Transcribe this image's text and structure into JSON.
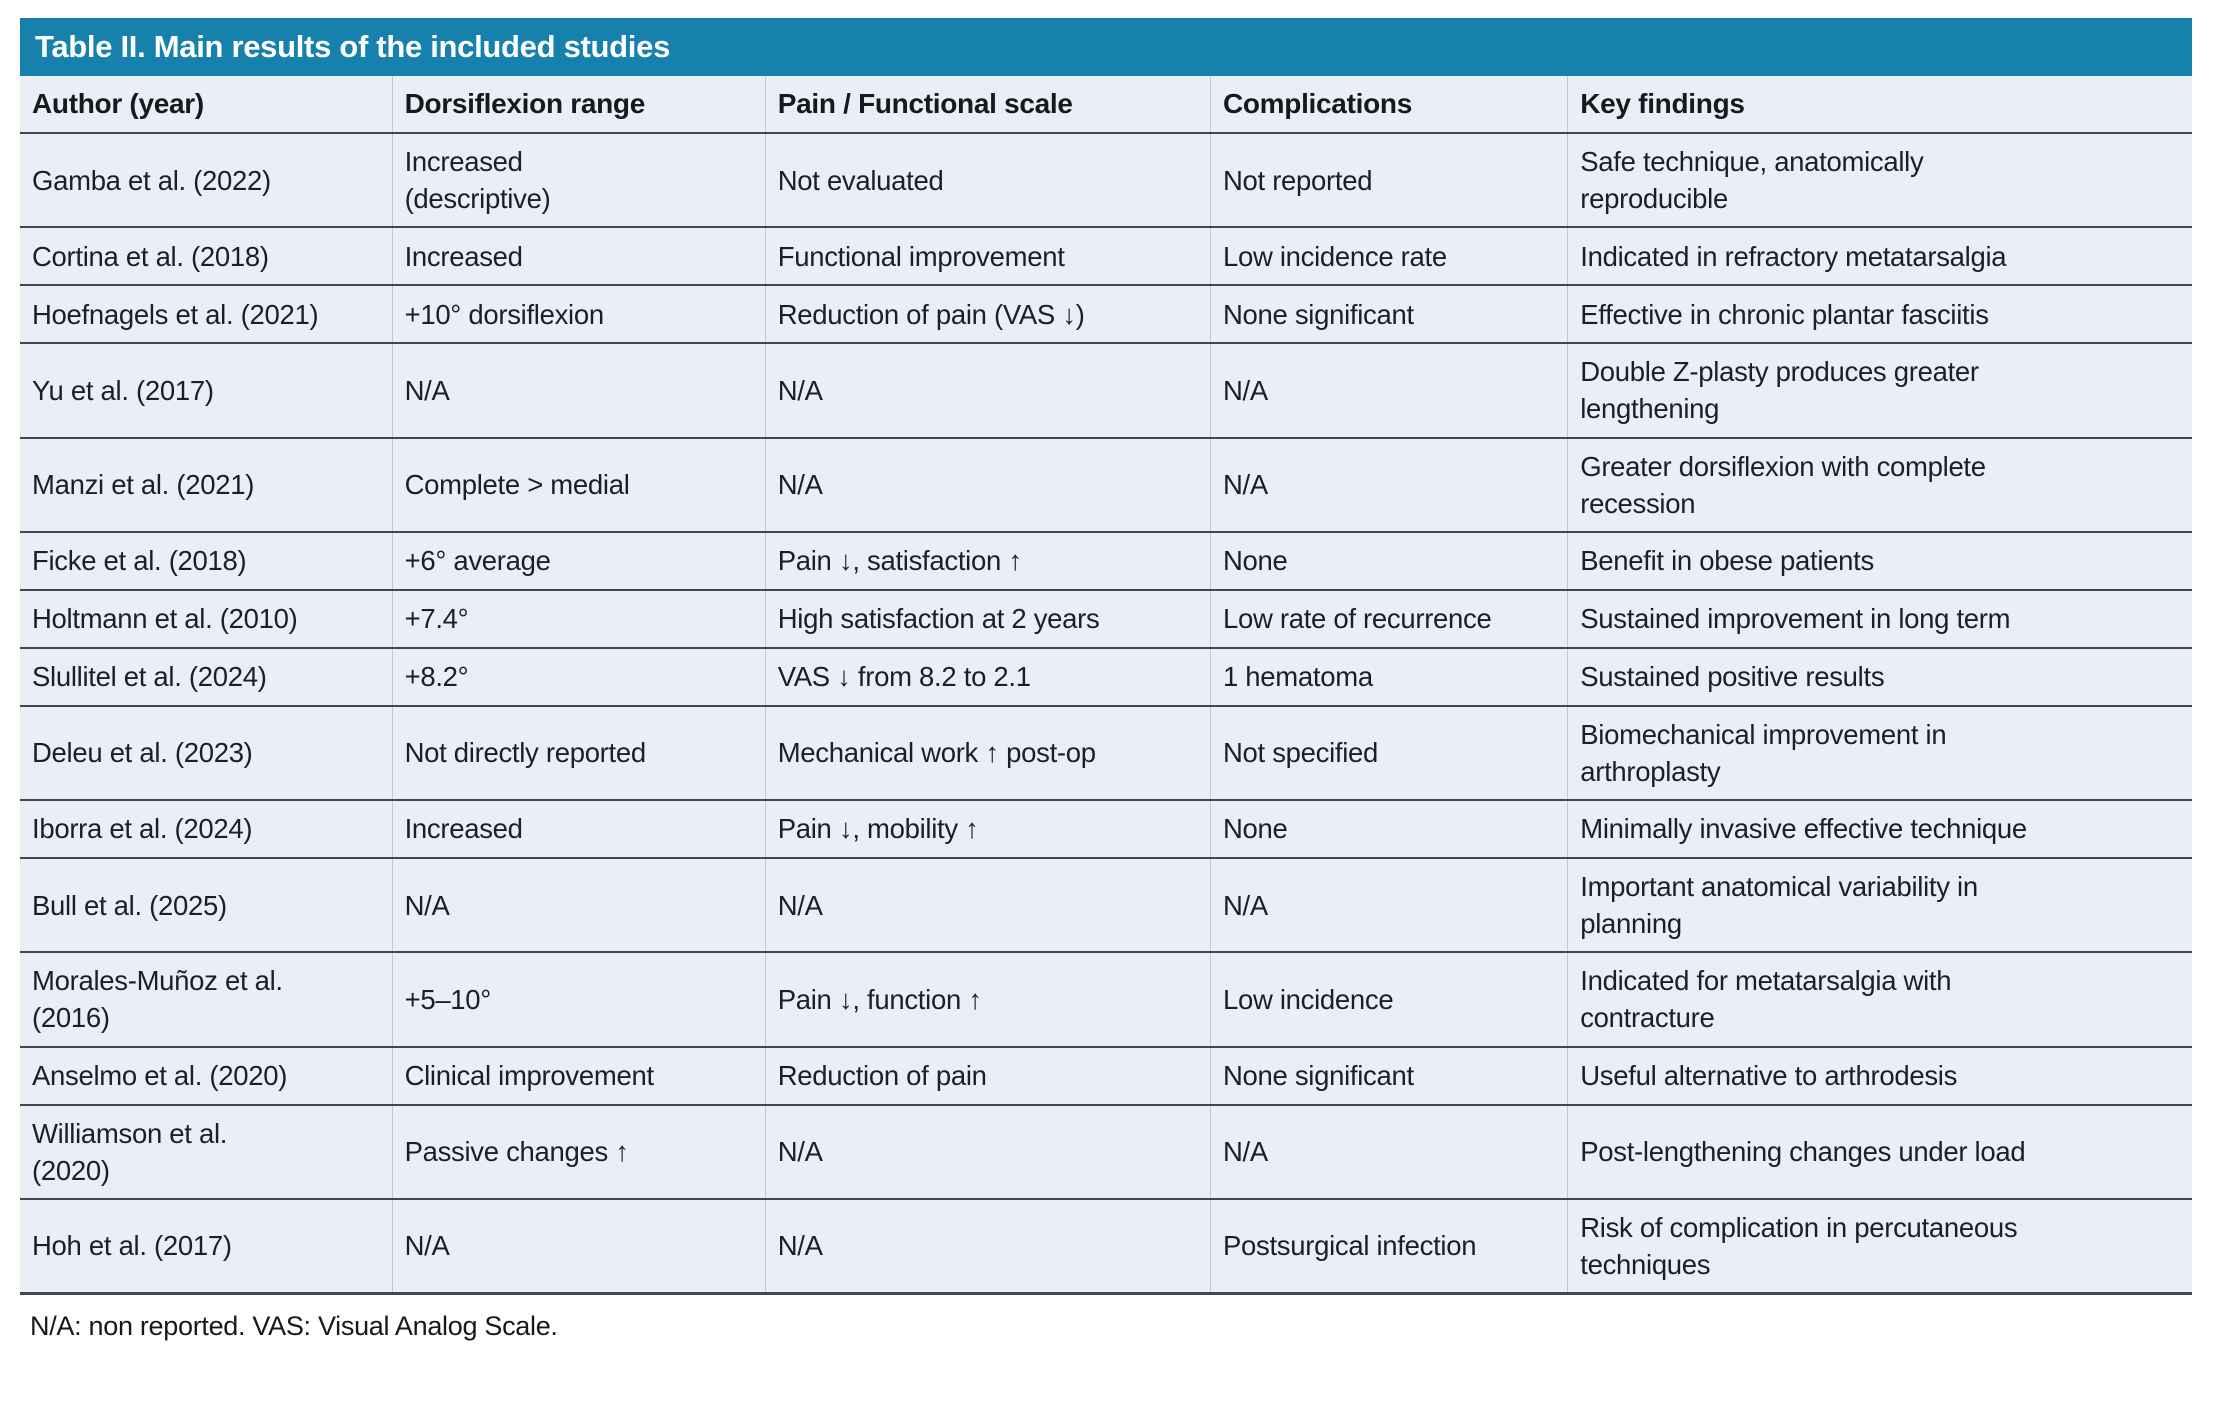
{
  "title": "Table II. Main results of the included studies",
  "colors": {
    "title_bar": "#1781ae",
    "row_background": "#eaeef6",
    "separator_dark": "#43474d",
    "column_divider": "#c0c9d5",
    "title_text": "#ffffff",
    "body_text": "#1d1f24"
  },
  "table": {
    "columns": [
      "Author (year)",
      "Dorsiflexion range",
      "Pain / Functional scale",
      "Complications",
      "Key findings"
    ],
    "rows": [
      [
        "Gamba et al. (2022)",
        "Increased\n(descriptive)",
        "Not evaluated",
        "Not reported",
        "Safe technique, anatomically\nreproducible"
      ],
      [
        "Cortina et al. (2018)",
        "Increased",
        "Functional improvement",
        "Low incidence rate",
        "Indicated in refractory metatarsalgia"
      ],
      [
        "Hoefnagels et al. (2021)",
        "+10° dorsiflexion",
        "Reduction of pain (VAS ↓)",
        "None significant",
        "Effective in chronic plantar fasciitis"
      ],
      [
        "Yu et al. (2017)",
        "N/A",
        "N/A",
        "N/A",
        "Double Z-plasty produces greater\nlengthening"
      ],
      [
        "Manzi et al. (2021)",
        "Complete > medial",
        "N/A",
        "N/A",
        "Greater dorsiflexion with complete\nrecession"
      ],
      [
        "Ficke et al. (2018)",
        "+6° average",
        "Pain ↓, satisfaction ↑",
        "None",
        "Benefit in obese patients"
      ],
      [
        "Holtmann et al. (2010)",
        "+7.4°",
        "High satisfaction at 2 years",
        "Low rate of recurrence",
        "Sustained improvement in long term"
      ],
      [
        "Slullitel et al. (2024)",
        "+8.2°",
        "VAS ↓ from 8.2 to 2.1",
        "1 hematoma",
        "Sustained positive results"
      ],
      [
        "Deleu et al. (2023)",
        "Not directly reported",
        "Mechanical work ↑ post-op",
        "Not specified",
        "Biomechanical improvement in\narthroplasty"
      ],
      [
        "Iborra et al. (2024)",
        "Increased",
        "Pain ↓, mobility ↑",
        "None",
        "Minimally invasive effective technique"
      ],
      [
        "Bull et al. (2025)",
        "N/A",
        "N/A",
        "N/A",
        "Important anatomical variability in\nplanning"
      ],
      [
        "Morales-Muñoz et al.\n(2016)",
        "+5–10°",
        "Pain ↓, function ↑",
        "Low incidence",
        "Indicated for metatarsalgia with\ncontracture"
      ],
      [
        "Anselmo et al. (2020)",
        "Clinical improvement",
        "Reduction of pain",
        "None significant",
        "Useful alternative to arthrodesis"
      ],
      [
        "Williamson et al.\n(2020)",
        "Passive changes ↑",
        "N/A",
        "N/A",
        "Post-lengthening changes under load"
      ],
      [
        "Hoh et al. (2017)",
        "N/A",
        "N/A",
        "Postsurgical infection",
        "Risk of complication in percutaneous\ntechniques"
      ]
    ]
  },
  "footnote": "N/A: non reported. VAS: Visual Analog Scale."
}
